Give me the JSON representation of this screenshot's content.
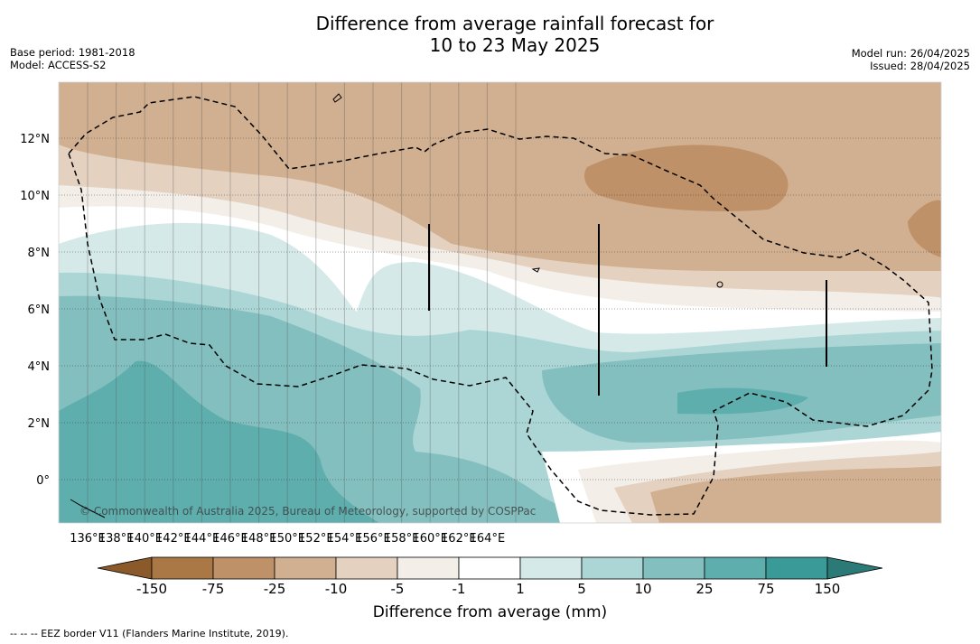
{
  "title_line1": "Difference from average rainfall forecast for",
  "title_line2": "10 to 23 May 2025",
  "base_period": "Base period: 1981-2018",
  "model": "Model: ACCESS-S2",
  "model_run": "Model run: 26/04/2025",
  "issued": "Issued: 28/04/2025",
  "map": {
    "lon_labels": [
      "136°E",
      "138°E",
      "140°E",
      "142°E",
      "144°E",
      "146°E",
      "148°E",
      "150°E",
      "152°E",
      "154°E",
      "156°E",
      "158°E",
      "160°E",
      "162°E",
      "164°E"
    ],
    "lat_labels": [
      "12°N",
      "10°N",
      "8°N",
      "6°N",
      "4°N",
      "2°N",
      "0°"
    ],
    "copyright": "© Commonwealth of Australia 2025, Bureau of Meteorology, supported by COSPPac",
    "eez_border": "dashed"
  },
  "colorbar": {
    "ticks": [
      "-150",
      "-75",
      "-25",
      "-10",
      "-5",
      "-1",
      "1",
      "5",
      "10",
      "25",
      "75",
      "150"
    ],
    "colors": [
      "#a97845",
      "#bf9169",
      "#d1b091",
      "#e4d1c0",
      "#f3eee8",
      "#ffffff",
      "#d6e9e9",
      "#acd6d6",
      "#84bfbf",
      "#5eaeae",
      "#3a9a98"
    ],
    "under_color": "#8b5a2b",
    "over_color": "#2c7a78",
    "label": "Difference from average (mm)"
  },
  "footnote": "--  --  -- EEZ border V11 (Flanders Marine Institute, 2019)."
}
